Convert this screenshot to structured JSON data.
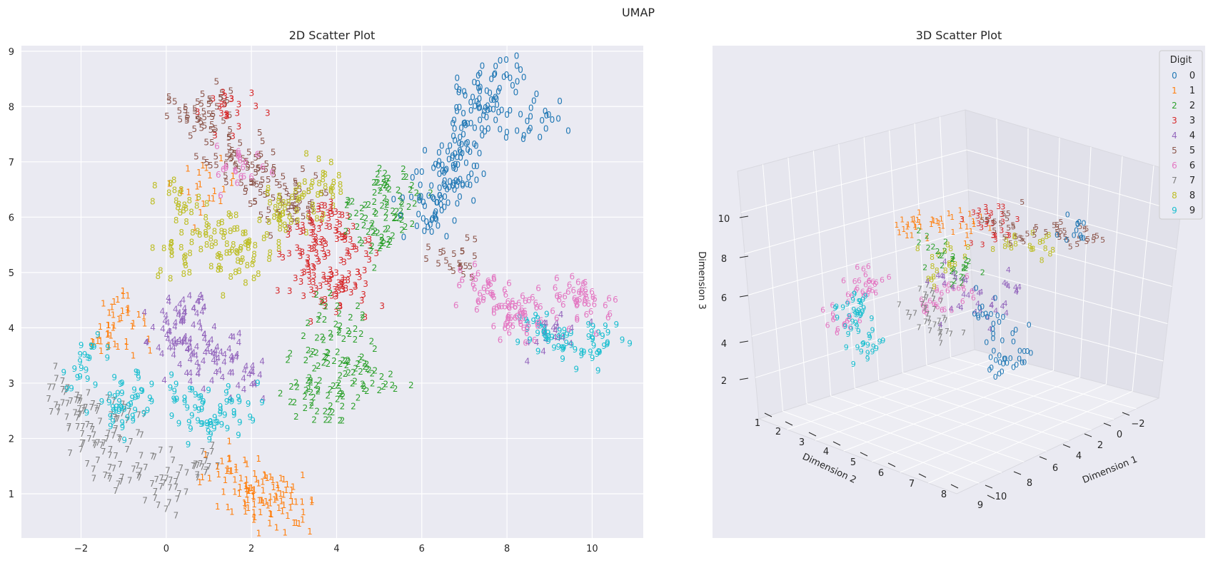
{
  "suptitle": "UMAP",
  "palette": {
    "0": "#1f77b4",
    "1": "#ff7f0e",
    "2": "#2ca02c",
    "3": "#d62728",
    "4": "#9467bd",
    "5": "#8c564b",
    "6": "#e377c2",
    "7": "#7f7f7f",
    "8": "#bcbd22",
    "9": "#17becf"
  },
  "background": "#eaeaf2",
  "legend": {
    "title": "Digit",
    "placement": "top-right",
    "entries": [
      {
        "marker": "0",
        "label": "0"
      },
      {
        "marker": "1",
        "label": "1"
      },
      {
        "marker": "2",
        "label": "2"
      },
      {
        "marker": "3",
        "label": "3"
      },
      {
        "marker": "4",
        "label": "4"
      },
      {
        "marker": "5",
        "label": "5"
      },
      {
        "marker": "6",
        "label": "6"
      },
      {
        "marker": "7",
        "label": "7"
      },
      {
        "marker": "8",
        "label": "8"
      },
      {
        "marker": "9",
        "label": "9"
      }
    ]
  },
  "chart_data": [
    {
      "type": "scatter",
      "title": "2D Scatter Plot",
      "xlabel": "",
      "ylabel": "",
      "xlim": [
        -3.4,
        11.2
      ],
      "ylim": [
        0.2,
        9.1
      ],
      "grid": true,
      "x_ticks": [
        "−2",
        "0",
        "2",
        "4",
        "6",
        "8",
        "10"
      ],
      "y_ticks": [
        "1",
        "2",
        "3",
        "4",
        "5",
        "6",
        "7",
        "8",
        "9"
      ],
      "series": [
        {
          "digit": "0",
          "points": [
            [
              7.4,
              8.2
            ],
            [
              7.0,
              7.6
            ],
            [
              6.6,
              7.0
            ],
            [
              6.3,
              6.3
            ],
            [
              7.8,
              8.4
            ],
            [
              8.6,
              7.6
            ],
            [
              6.9,
              6.8
            ],
            [
              6.1,
              5.9
            ],
            [
              7.6,
              7.9
            ],
            [
              6.4,
              6.6
            ]
          ]
        },
        {
          "digit": "1",
          "points": [
            [
              1.9,
              0.9
            ],
            [
              2.5,
              0.7
            ],
            [
              1.5,
              1.4
            ],
            [
              -1.3,
              3.8
            ],
            [
              1.0,
              6.5
            ],
            [
              2.2,
              1.1
            ],
            [
              2.9,
              0.8
            ],
            [
              -1.1,
              4.1
            ]
          ]
        },
        {
          "digit": "2",
          "points": [
            [
              4.6,
              6.0
            ],
            [
              5.2,
              6.6
            ],
            [
              3.7,
              3.5
            ],
            [
              4.3,
              3.2
            ],
            [
              5.0,
              5.5
            ],
            [
              4.8,
              3.0
            ],
            [
              3.4,
              2.8
            ],
            [
              4.0,
              4.0
            ],
            [
              5.5,
              6.2
            ],
            [
              3.9,
              2.6
            ]
          ]
        },
        {
          "digit": "3",
          "points": [
            [
              3.6,
              5.4
            ],
            [
              4.1,
              5.7
            ],
            [
              3.3,
              5.0
            ],
            [
              4.4,
              5.2
            ],
            [
              3.8,
              4.7
            ],
            [
              1.5,
              7.9
            ],
            [
              3.5,
              5.9
            ],
            [
              4.2,
              4.5
            ]
          ]
        },
        {
          "digit": "4",
          "points": [
            [
              0.5,
              4.3
            ],
            [
              0.2,
              3.7
            ],
            [
              1.2,
              3.5
            ],
            [
              1.8,
              3.0
            ],
            [
              0.8,
              3.2
            ],
            [
              9.2,
              3.9
            ],
            [
              0.4,
              4.0
            ]
          ]
        },
        {
          "digit": "5",
          "points": [
            [
              1.0,
              8.0
            ],
            [
              1.5,
              7.3
            ],
            [
              2.2,
              6.6
            ],
            [
              3.0,
              6.3
            ],
            [
              0.6,
              7.7
            ],
            [
              1.8,
              6.9
            ],
            [
              2.6,
              6.1
            ],
            [
              6.8,
              5.1
            ]
          ]
        },
        {
          "digit": "6",
          "points": [
            [
              7.8,
              4.5
            ],
            [
              8.6,
              4.2
            ],
            [
              9.5,
              4.6
            ],
            [
              8.2,
              4.1
            ],
            [
              10.0,
              4.4
            ],
            [
              1.8,
              6.8
            ],
            [
              7.4,
              4.7
            ]
          ]
        },
        {
          "digit": "7",
          "points": [
            [
              -1.6,
              1.8
            ],
            [
              -0.8,
              1.3
            ],
            [
              0.0,
              1.0
            ],
            [
              -2.4,
              2.7
            ],
            [
              -1.0,
              2.2
            ],
            [
              0.6,
              1.5
            ],
            [
              -2.0,
              2.4
            ]
          ]
        },
        {
          "digit": "8",
          "points": [
            [
              0.4,
              6.2
            ],
            [
              1.2,
              5.6
            ],
            [
              2.0,
              5.5
            ],
            [
              3.0,
              6.2
            ],
            [
              0.3,
              5.3
            ],
            [
              2.6,
              5.9
            ],
            [
              3.8,
              6.6
            ],
            [
              1.5,
              5.1
            ]
          ]
        },
        {
          "digit": "9",
          "points": [
            [
              -1.8,
              3.3
            ],
            [
              -0.8,
              2.8
            ],
            [
              0.4,
              2.6
            ],
            [
              1.5,
              2.5
            ],
            [
              -1.2,
              2.4
            ],
            [
              9.4,
              3.6
            ],
            [
              8.8,
              3.9
            ],
            [
              10.2,
              3.8
            ],
            [
              0.9,
              2.2
            ]
          ]
        }
      ]
    },
    {
      "type": "scatter",
      "title": "3D Scatter Plot",
      "xlabel": "Dimension 1",
      "ylabel": "Dimension 2",
      "zlabel": "Dimension 3",
      "grid": true,
      "x_ticks": [
        "10",
        "8",
        "6",
        "4",
        "2",
        "0",
        "−2"
      ],
      "y_ticks": [
        "1",
        "2",
        "3",
        "4",
        "5",
        "6",
        "7",
        "8",
        "9"
      ],
      "z_ticks": [
        "2",
        "4",
        "6",
        "8",
        "10"
      ]
    }
  ]
}
